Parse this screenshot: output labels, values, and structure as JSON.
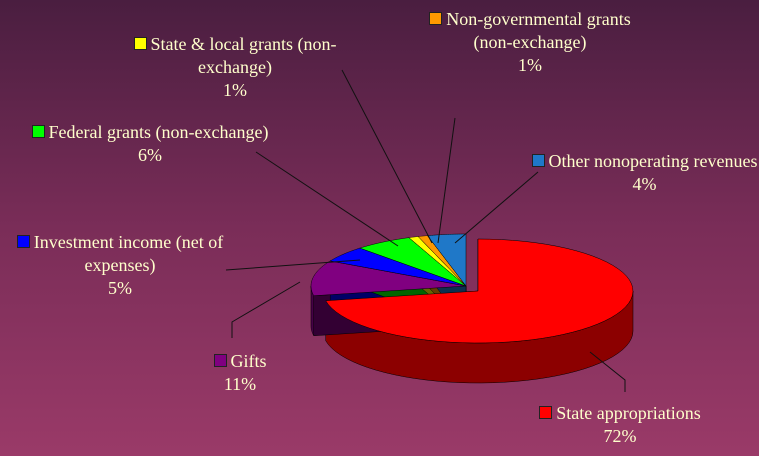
{
  "chart_data": {
    "type": "pie",
    "categories": [
      "State appropriations",
      "Gifts",
      "Investment income (net of expenses)",
      "Federal grants (non-exchange)",
      "State & local grants (non-exchange)",
      "Non-governmental grants (non-exchange)",
      "Other nonoperating revenues"
    ],
    "values": [
      72,
      11,
      5,
      6,
      1,
      1,
      4
    ],
    "value_labels": [
      "72%",
      "11%",
      "5%",
      "6%",
      "1%",
      "1%",
      "4%"
    ],
    "colors": [
      "#ff0000",
      "#800080",
      "#0000ff",
      "#00ff00",
      "#ffff00",
      "#ff9900",
      "#1f78c8"
    ],
    "three_d": true
  }
}
